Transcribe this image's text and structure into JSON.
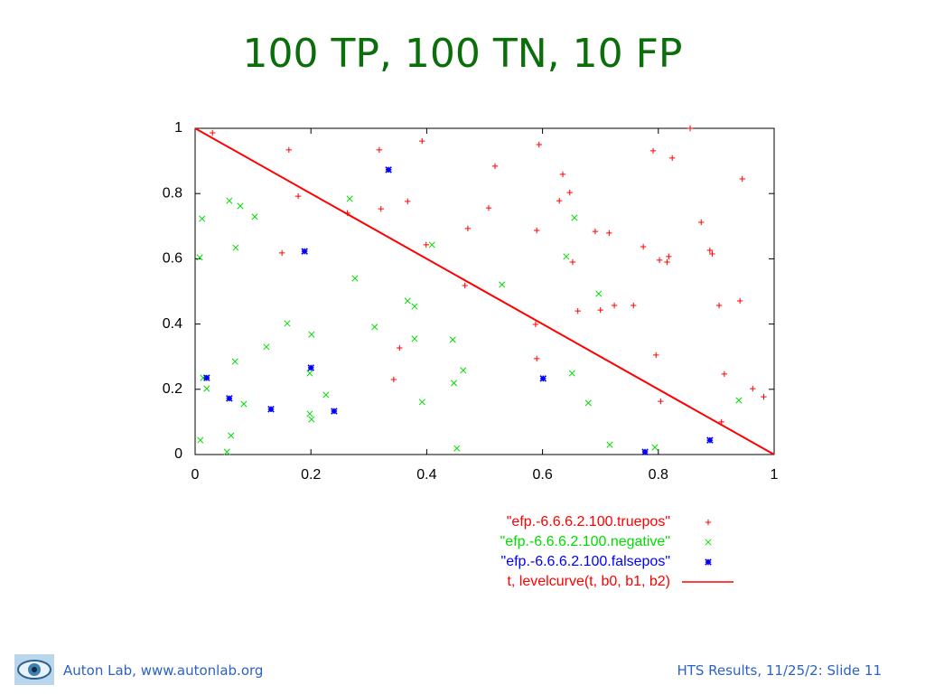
{
  "title": "100 TP, 100 TN, 10 FP",
  "footer": {
    "left": "Auton Lab, www.autonlab.org",
    "right": "HTS Results, 11/25/2: Slide 11"
  },
  "chart_data": {
    "type": "scatter",
    "xlim": [
      0,
      1
    ],
    "ylim": [
      0,
      1
    ],
    "xticks": [
      0,
      0.2,
      0.4,
      0.6,
      0.8,
      1
    ],
    "yticks": [
      0,
      0.2,
      0.4,
      0.6,
      0.8,
      1
    ],
    "legend": "lower-right",
    "series": [
      {
        "name": "\"efp.-6.6.6.2.100.truepos\"",
        "color": "#ff0000",
        "marker": "plus",
        "x": [
          0.03,
          0.162,
          0.318,
          0.392,
          0.594,
          0.791,
          0.855,
          0.824,
          0.635,
          0.518,
          0.178,
          0.263,
          0.321,
          0.367,
          0.507,
          0.629,
          0.647,
          0.945,
          0.874,
          0.15,
          0.399,
          0.471,
          0.59,
          0.652,
          0.691,
          0.715,
          0.774,
          0.802,
          0.815,
          0.818,
          0.889,
          0.893,
          0.466,
          0.588,
          0.661,
          0.7,
          0.724,
          0.757,
          0.905,
          0.941,
          0.353,
          0.343,
          0.59,
          0.796,
          0.914,
          0.804,
          0.909,
          0.963,
          0.982
        ],
        "values": [
          0.986,
          0.934,
          0.934,
          0.961,
          0.95,
          0.931,
          1.0,
          0.909,
          0.859,
          0.884,
          0.792,
          0.74,
          0.753,
          0.776,
          0.756,
          0.778,
          0.803,
          0.845,
          0.712,
          0.618,
          0.643,
          0.693,
          0.687,
          0.59,
          0.684,
          0.679,
          0.637,
          0.596,
          0.59,
          0.607,
          0.626,
          0.615,
          0.518,
          0.399,
          0.44,
          0.443,
          0.457,
          0.457,
          0.457,
          0.471,
          0.327,
          0.23,
          0.294,
          0.305,
          0.247,
          0.163,
          0.1,
          0.202,
          0.177
        ]
      },
      {
        "name": "\"efp.-6.6.6.2.100.negative\"",
        "color": "#00dd00",
        "marker": "cross",
        "x": [
          0.012,
          0.059,
          0.078,
          0.103,
          0.008,
          0.07,
          0.267,
          0.276,
          0.409,
          0.53,
          0.655,
          0.641,
          0.697,
          0.159,
          0.201,
          0.123,
          0.069,
          0.014,
          0.02,
          0.084,
          0.31,
          0.367,
          0.379,
          0.379,
          0.445,
          0.463,
          0.447,
          0.392,
          0.198,
          0.226,
          0.198,
          0.201,
          0.062,
          0.009,
          0.055,
          0.452,
          0.651,
          0.679,
          0.716,
          0.794,
          0.939
        ],
        "values": [
          0.723,
          0.778,
          0.762,
          0.729,
          0.604,
          0.634,
          0.784,
          0.54,
          0.643,
          0.521,
          0.726,
          0.607,
          0.493,
          0.402,
          0.368,
          0.33,
          0.285,
          0.235,
          0.202,
          0.155,
          0.391,
          0.471,
          0.454,
          0.355,
          0.352,
          0.258,
          0.219,
          0.161,
          0.249,
          0.183,
          0.125,
          0.108,
          0.058,
          0.044,
          0.008,
          0.019,
          0.249,
          0.158,
          0.03,
          0.022,
          0.166
        ]
      },
      {
        "name": "\"efp.-6.6.6.2.100.falsepos\"",
        "color": "#0000ff",
        "marker": "star",
        "x": [
          0.334,
          0.189,
          0.02,
          0.2,
          0.059,
          0.131,
          0.24,
          0.601,
          0.777,
          0.889
        ],
        "values": [
          0.873,
          0.623,
          0.235,
          0.266,
          0.172,
          0.139,
          0.133,
          0.233,
          0.008,
          0.044
        ]
      },
      {
        "name": "t, levelcurve(t, b0, b1, b2)",
        "color": "#ff0000",
        "marker": "line",
        "x": [
          0,
          1
        ],
        "values": [
          1,
          0
        ]
      }
    ]
  }
}
